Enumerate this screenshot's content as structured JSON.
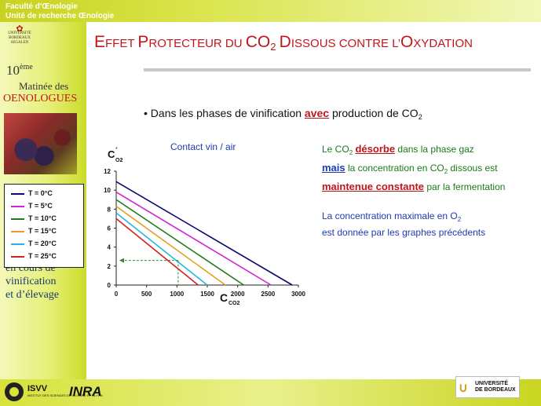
{
  "header": {
    "faculty": "Faculté d'Œnologie",
    "unit": "Unité de recherche Œnologie"
  },
  "sidebar": {
    "logo_text": "UNIVERSITÉ BORDEAUX SEGALEN",
    "edition_num": "10",
    "edition_sup": "ème",
    "event_line1": "Matinée des",
    "event_line2": "OENOLOGUES",
    "text_lines": [
      "en cours de",
      "vinification",
      "et d’élevage"
    ]
  },
  "slide": {
    "title_parts": [
      {
        "t": "E",
        "size": "big"
      },
      {
        "t": "FFET ",
        "size": "small"
      },
      {
        "t": "P",
        "size": "big"
      },
      {
        "t": "ROTECTEUR DU ",
        "size": "small"
      },
      {
        "t": "CO",
        "size": "big"
      },
      {
        "t": "2",
        "size": "sub"
      },
      {
        "t": " ",
        "size": "small"
      },
      {
        "t": "D",
        "size": "big"
      },
      {
        "t": "ISSOUS CONTRE L’",
        "size": "small"
      },
      {
        "t": "O",
        "size": "big"
      },
      {
        "t": "XYDATION",
        "size": "small"
      }
    ],
    "bullet_before": "• Dans les phases de vinification ",
    "bullet_emph": "avec",
    "bullet_after": " production de CO",
    "bullet_sub": "2"
  },
  "chart_data": {
    "type": "line",
    "title": "Contact vin / air",
    "ylabel": "C*O2",
    "xlabel": "CCO2",
    "xlim": [
      0,
      3000
    ],
    "ylim": [
      0,
      12
    ],
    "xticks": [
      0,
      500,
      1000,
      1500,
      2000,
      2500,
      3000
    ],
    "yticks": [
      0,
      2,
      4,
      6,
      8,
      10,
      12
    ],
    "series": [
      {
        "name": "T = 0°C",
        "color": "#0a0a6e",
        "points": [
          [
            0,
            10.9
          ],
          [
            2900,
            0
          ]
        ]
      },
      {
        "name": "T = 5°C",
        "color": "#d61fd6",
        "points": [
          [
            0,
            9.8
          ],
          [
            2550,
            0
          ]
        ]
      },
      {
        "name": "T = 10°C",
        "color": "#1f7a1f",
        "points": [
          [
            0,
            9.0
          ],
          [
            2100,
            0
          ]
        ]
      },
      {
        "name": "T = 15°C",
        "color": "#e6a020",
        "points": [
          [
            0,
            8.3
          ],
          [
            1800,
            0
          ]
        ]
      },
      {
        "name": "T = 20°C",
        "color": "#1fb7e6",
        "points": [
          [
            0,
            7.6
          ],
          [
            1500,
            0
          ]
        ]
      },
      {
        "name": "T = 25°C",
        "color": "#d61f1f",
        "points": [
          [
            0,
            7.0
          ],
          [
            1350,
            0
          ]
        ]
      }
    ],
    "annotation": {
      "x": 1020,
      "y": 2.6,
      "color": "#2e8b2e"
    }
  },
  "info": {
    "l1_a": "Le CO",
    "l1_sub": "2",
    "l1_emph": "désorbe",
    "l1_b": " dans la phase gaz",
    "l2_emph": "mais",
    "l2_a": " la concentration en CO",
    "l2_sub": "2",
    "l2_b": " dissous est",
    "l3_emph": "maintenue constante",
    "l3_b": " par la fermentation",
    "l4_a": "La concentration maximale en O",
    "l4_sub": "2",
    "l5": "est donnée par les graphes précédents"
  },
  "footer": {
    "isvv_label": "ISVV",
    "isvv_sub": "INSTITUT DES SCIENCES DE LA VIGNE ET DU VIN",
    "inra_label": "INRA",
    "ub_line1": "UNIVERSITÉ",
    "ub_line2": "DE BORDEAUX"
  }
}
